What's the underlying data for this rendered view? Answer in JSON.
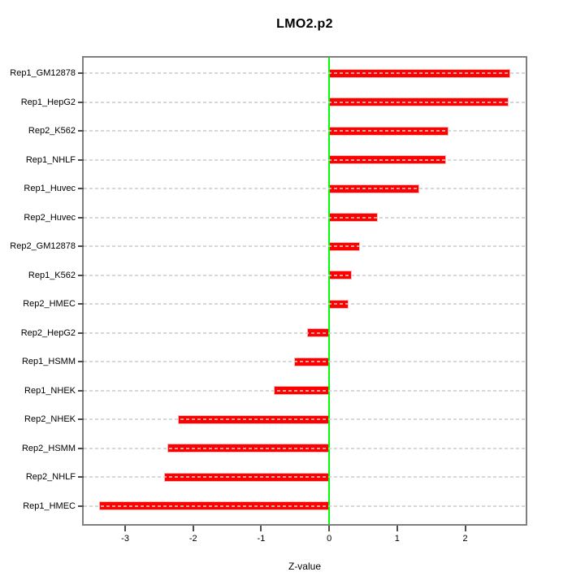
{
  "chart_data": {
    "type": "bar",
    "orientation": "horizontal",
    "title": "LMO2.p2",
    "xlabel": "Z-value",
    "ylabel": "",
    "xlim": [
      -3.61,
      2.89
    ],
    "xticks": [
      "-3",
      "-2",
      "-1",
      "0",
      "1",
      "2"
    ],
    "xtick_values": [
      -3,
      -2,
      -1,
      0,
      1,
      2
    ],
    "grid": "dotted-horizontal-on",
    "legend": "none",
    "categories": [
      "Rep1_GM12878",
      "Rep1_HepG2",
      "Rep2_K562",
      "Rep1_NHLF",
      "Rep1_Huvec",
      "Rep2_Huvec",
      "Rep2_GM12878",
      "Rep1_K562",
      "Rep2_HMEC",
      "Rep2_HepG2",
      "Rep1_HSMM",
      "Rep1_NHEK",
      "Rep2_NHEK",
      "Rep2_HSMM",
      "Rep2_NHLF",
      "Rep1_HMEC"
    ],
    "values": [
      2.66,
      2.64,
      1.75,
      1.72,
      1.33,
      0.72,
      0.45,
      0.33,
      0.28,
      -0.32,
      -0.52,
      -0.82,
      -2.22,
      -2.38,
      -2.43,
      -3.38
    ],
    "colors": {
      "bar": "#FF0000",
      "zero_line": "#00FF00",
      "grid": "#CDCDCD",
      "box_border": "#808080",
      "text": "#000000"
    }
  }
}
